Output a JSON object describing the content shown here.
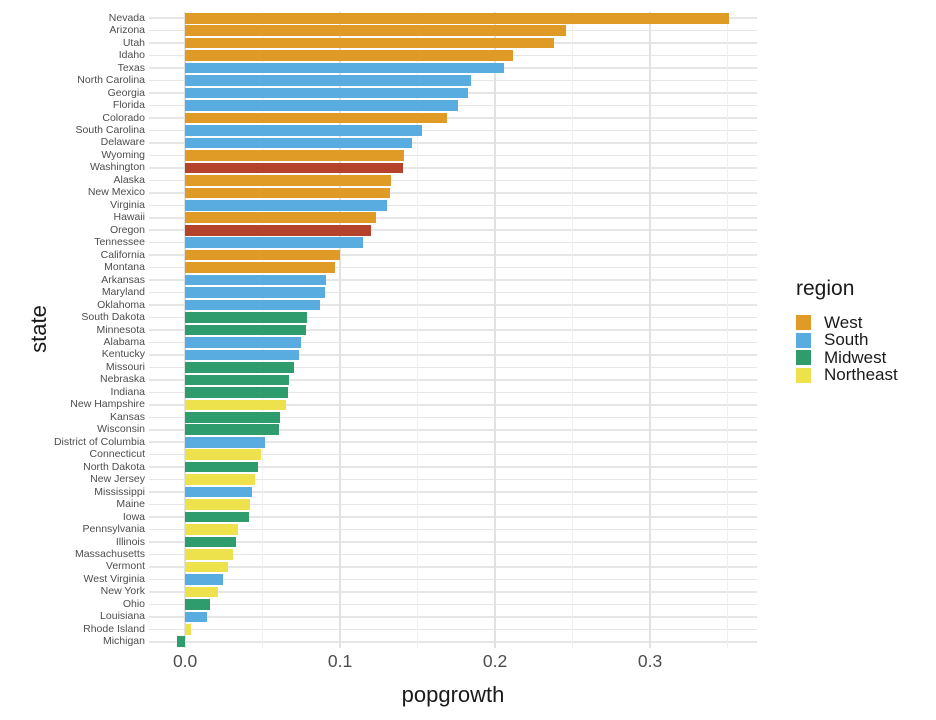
{
  "chart_data": {
    "type": "bar",
    "orientation": "horizontal",
    "title": "",
    "xlabel": "popgrowth",
    "ylabel": "state",
    "xlim": [
      -0.0233,
      0.369
    ],
    "x_major_ticks": [
      0.0,
      0.1,
      0.2,
      0.3
    ],
    "x_minor_ticks": [
      0.05,
      0.15,
      0.25,
      0.35
    ],
    "x_tick_format_decimals": 1,
    "grid": true,
    "legend": {
      "title": "region",
      "position": "right",
      "entries": [
        {
          "label": "West",
          "color": "#e09a26"
        },
        {
          "label": "South",
          "color": "#59ace0"
        },
        {
          "label": "Midwest",
          "color": "#2e9c6d"
        },
        {
          "label": "Northeast",
          "color": "#ede24b"
        }
      ]
    },
    "highlight": {
      "states": [
        "Washington",
        "Oregon"
      ],
      "color": "#b5432c"
    },
    "bars": [
      {
        "state": "Nevada",
        "region": "West",
        "value": 0.3512
      },
      {
        "state": "Arizona",
        "region": "West",
        "value": 0.2459
      },
      {
        "state": "Utah",
        "region": "West",
        "value": 0.2377
      },
      {
        "state": "Idaho",
        "region": "West",
        "value": 0.2115
      },
      {
        "state": "Texas",
        "region": "South",
        "value": 0.2059
      },
      {
        "state": "North Carolina",
        "region": "South",
        "value": 0.1846
      },
      {
        "state": "Georgia",
        "region": "South",
        "value": 0.1826
      },
      {
        "state": "Florida",
        "region": "South",
        "value": 0.1763
      },
      {
        "state": "Colorado",
        "region": "West",
        "value": 0.1692
      },
      {
        "state": "South Carolina",
        "region": "South",
        "value": 0.1529
      },
      {
        "state": "Delaware",
        "region": "South",
        "value": 0.1464
      },
      {
        "state": "Wyoming",
        "region": "West",
        "value": 0.1414
      },
      {
        "state": "Washington",
        "region": "West",
        "value": 0.1409
      },
      {
        "state": "Alaska",
        "region": "West",
        "value": 0.1329
      },
      {
        "state": "New Mexico",
        "region": "West",
        "value": 0.132
      },
      {
        "state": "Virginia",
        "region": "South",
        "value": 0.1303
      },
      {
        "state": "Hawaii",
        "region": "West",
        "value": 0.1229
      },
      {
        "state": "Oregon",
        "region": "West",
        "value": 0.12
      },
      {
        "state": "Tennessee",
        "region": "South",
        "value": 0.1148
      },
      {
        "state": "California",
        "region": "West",
        "value": 0.0999
      },
      {
        "state": "Montana",
        "region": "West",
        "value": 0.0967
      },
      {
        "state": "Arkansas",
        "region": "South",
        "value": 0.0911
      },
      {
        "state": "Maryland",
        "region": "South",
        "value": 0.0901
      },
      {
        "state": "Oklahoma",
        "region": "South",
        "value": 0.0871
      },
      {
        "state": "South Dakota",
        "region": "Midwest",
        "value": 0.0786
      },
      {
        "state": "Minnesota",
        "region": "Midwest",
        "value": 0.0781
      },
      {
        "state": "Alabama",
        "region": "South",
        "value": 0.0748
      },
      {
        "state": "Kentucky",
        "region": "South",
        "value": 0.0738
      },
      {
        "state": "Missouri",
        "region": "Midwest",
        "value": 0.07
      },
      {
        "state": "Nebraska",
        "region": "Midwest",
        "value": 0.0672
      },
      {
        "state": "Indiana",
        "region": "Midwest",
        "value": 0.0661
      },
      {
        "state": "New Hampshire",
        "region": "Northeast",
        "value": 0.0653
      },
      {
        "state": "Kansas",
        "region": "Midwest",
        "value": 0.0613
      },
      {
        "state": "Wisconsin",
        "region": "Midwest",
        "value": 0.0603
      },
      {
        "state": "District of Columbia",
        "region": "South",
        "value": 0.0517
      },
      {
        "state": "Connecticut",
        "region": "Northeast",
        "value": 0.0488
      },
      {
        "state": "North Dakota",
        "region": "Midwest",
        "value": 0.0473
      },
      {
        "state": "New Jersey",
        "region": "Northeast",
        "value": 0.0449
      },
      {
        "state": "Mississippi",
        "region": "South",
        "value": 0.0431
      },
      {
        "state": "Maine",
        "region": "Northeast",
        "value": 0.0418
      },
      {
        "state": "Iowa",
        "region": "Midwest",
        "value": 0.041
      },
      {
        "state": "Pennsylvania",
        "region": "Northeast",
        "value": 0.0343
      },
      {
        "state": "Illinois",
        "region": "Midwest",
        "value": 0.033
      },
      {
        "state": "Massachusetts",
        "region": "Northeast",
        "value": 0.031
      },
      {
        "state": "Vermont",
        "region": "Northeast",
        "value": 0.0279
      },
      {
        "state": "West Virginia",
        "region": "South",
        "value": 0.0247
      },
      {
        "state": "New York",
        "region": "Northeast",
        "value": 0.0212
      },
      {
        "state": "Ohio",
        "region": "Midwest",
        "value": 0.0159
      },
      {
        "state": "Louisiana",
        "region": "South",
        "value": 0.0142
      },
      {
        "state": "Rhode Island",
        "region": "Northeast",
        "value": 0.0041
      },
      {
        "state": "Michigan",
        "region": "Midwest",
        "value": -0.0055
      }
    ]
  }
}
